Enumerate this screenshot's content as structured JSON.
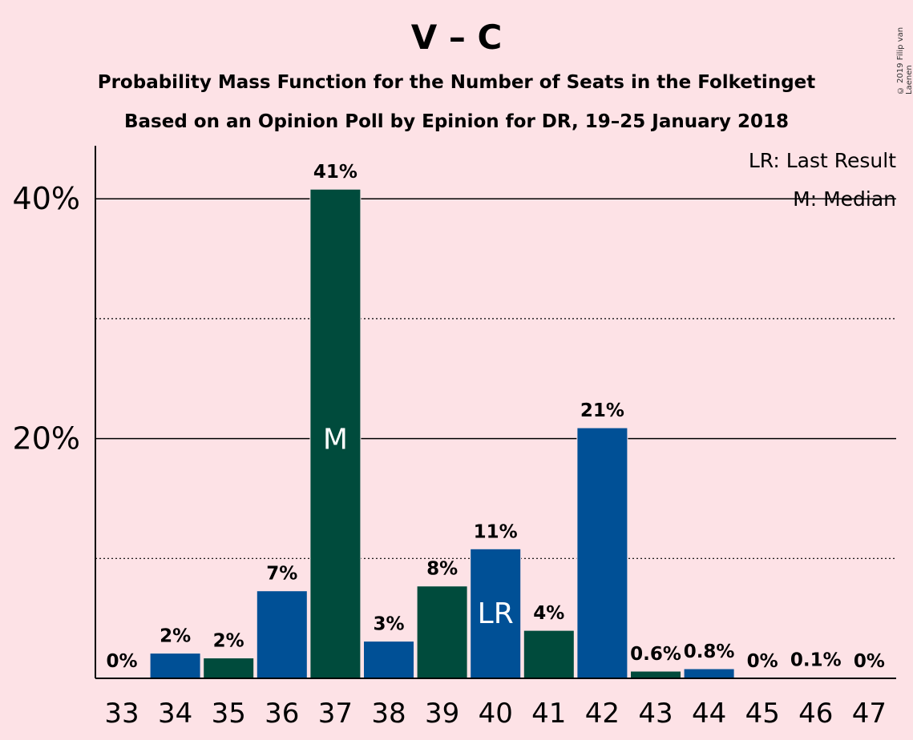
{
  "chart_data": {
    "type": "bar",
    "title": "V – C",
    "subtitle_lines": [
      "Probability Mass Function for the Number of Seats in the Folketinget",
      "Based on an Opinion Poll by Epinion for DR, 19–25 January 2018"
    ],
    "copyright": "© 2019 Filip van Laenen",
    "categories": [
      "33",
      "34",
      "35",
      "36",
      "37",
      "38",
      "39",
      "40",
      "41",
      "42",
      "43",
      "44",
      "45",
      "46",
      "47"
    ],
    "values": [
      0,
      2.1,
      1.7,
      7.3,
      40.8,
      3.1,
      7.7,
      10.8,
      4.0,
      20.9,
      0.6,
      0.8,
      0,
      0.1,
      0
    ],
    "value_labels": [
      "0%",
      "2%",
      "2%",
      "7%",
      "41%",
      "3%",
      "8%",
      "11%",
      "4%",
      "21%",
      "0.6%",
      "0.8%",
      "0%",
      "0.1%",
      "0%"
    ],
    "bar_colors": [
      "#005096",
      "#005096",
      "#004B3C",
      "#005096",
      "#004B3C",
      "#005096",
      "#004B3C",
      "#005096",
      "#004B3C",
      "#005096",
      "#004B3C",
      "#005096",
      "#004B3C",
      "#005096",
      "#004B3C"
    ],
    "marks": {
      "37": "M",
      "40": "LR"
    },
    "ylim": [
      0,
      44
    ],
    "yticks": [
      {
        "value": 20,
        "label": "20%",
        "style": "solid"
      },
      {
        "value": 40,
        "label": "40%",
        "style": "solid"
      }
    ],
    "minor_grid": [
      10,
      30
    ],
    "legend": [
      "LR: Last Result",
      "M: Median"
    ],
    "legend_position": "top-right",
    "xlabel": "",
    "ylabel": ""
  }
}
